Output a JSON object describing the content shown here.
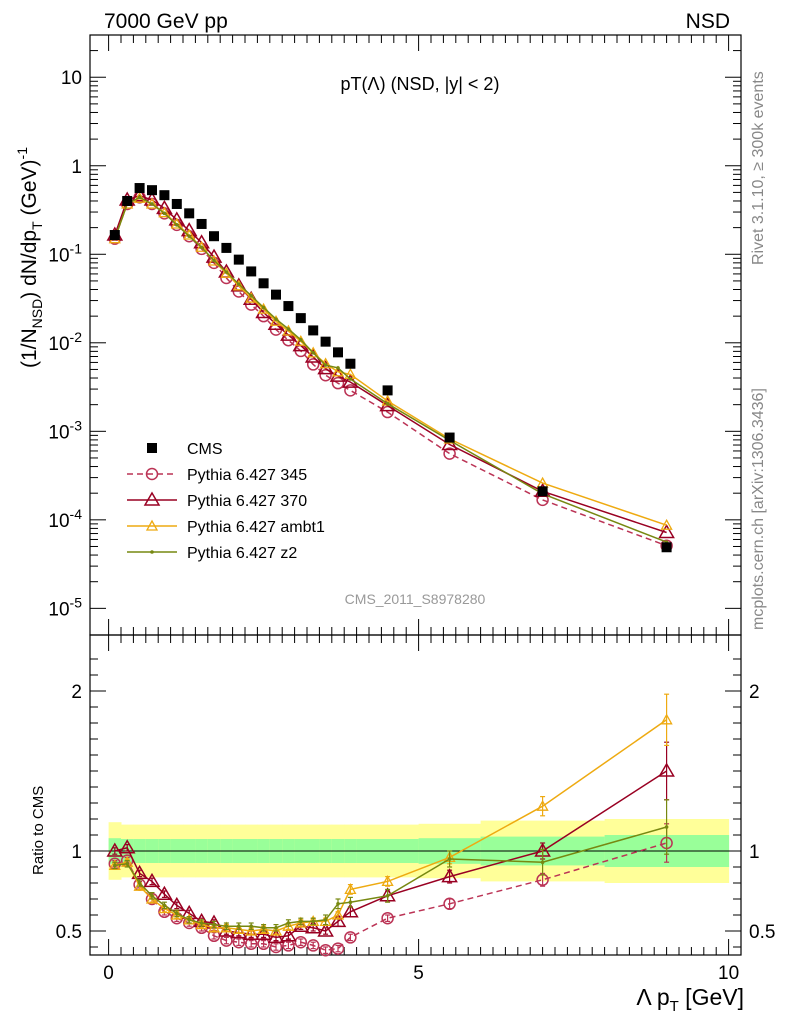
{
  "header": {
    "left": "7000 GeV pp",
    "right": "NSD"
  },
  "side": {
    "rivet": "Rivet 3.1.10, ≥ 300k events",
    "site": "mcplots.cern.ch [arXiv:1306.3436]"
  },
  "colors": {
    "cms": "#000000",
    "p345": "#bb3355",
    "p370": "#990022",
    "ambt1": "#eeaa11",
    "z2": "#778811",
    "band_inner": "#99ff99",
    "band_outer": "#ffff99"
  },
  "chart_data": [
    {
      "type": "line",
      "title": "pT(Λ) (NSD, |y| < 2)",
      "ylabel": "(1/N_NSD) dN/dp_T (GeV)^-1",
      "yscale": "log",
      "xlim": [
        -0.3,
        10.2
      ],
      "ylim": [
        5e-06,
        30
      ],
      "yticks": [
        {
          "v": 10,
          "label": "10"
        },
        {
          "v": 1,
          "label": "1"
        },
        {
          "v": 0.1,
          "label": "10^-1"
        },
        {
          "v": 0.01,
          "label": "10^-2"
        },
        {
          "v": 0.001,
          "label": "10^-3"
        },
        {
          "v": 0.0001,
          "label": "10^-4"
        },
        {
          "v": 1e-05,
          "label": "10^-5"
        }
      ],
      "watermark": "CMS_2011_S8978280",
      "x": [
        0.1,
        0.3,
        0.5,
        0.7,
        0.9,
        1.1,
        1.3,
        1.5,
        1.7,
        1.9,
        2.1,
        2.3,
        2.5,
        2.7,
        2.9,
        3.1,
        3.3,
        3.5,
        3.7,
        3.9,
        4.5,
        5.5,
        7.0,
        9.0
      ],
      "series": [
        {
          "name": "CMS",
          "key": "cms",
          "values": [
            0.165,
            0.4,
            0.56,
            0.53,
            0.465,
            0.37,
            0.29,
            0.22,
            0.16,
            0.118,
            0.087,
            0.064,
            0.047,
            0.035,
            0.026,
            0.019,
            0.0138,
            0.0103,
            0.0078,
            0.0058,
            0.0029,
            0.00085,
            0.00021,
            4.9e-05
          ]
        },
        {
          "name": "Pythia 6.427 345",
          "key": "p345",
          "values": [
            0.15,
            0.37,
            0.44,
            0.37,
            0.29,
            0.215,
            0.16,
            0.115,
            0.08,
            0.054,
            0.038,
            0.027,
            0.02,
            0.0141,
            0.0107,
            0.0081,
            0.0057,
            0.0043,
            0.0035,
            0.0029,
            0.00165,
            0.00056,
            0.000168,
            5.1e-05
          ]
        },
        {
          "name": "Pythia 6.427 370",
          "key": "p370",
          "values": [
            0.165,
            0.41,
            0.46,
            0.41,
            0.33,
            0.245,
            0.185,
            0.135,
            0.093,
            0.063,
            0.044,
            0.031,
            0.022,
            0.0162,
            0.0122,
            0.0093,
            0.0069,
            0.0051,
            0.0042,
            0.0036,
            0.00195,
            0.00071,
            0.00021,
            7.2e-05
          ]
        },
        {
          "name": "Pythia 6.427 ambt1",
          "key": "ambt1",
          "values": [
            0.15,
            0.37,
            0.43,
            0.37,
            0.295,
            0.22,
            0.165,
            0.12,
            0.084,
            0.061,
            0.044,
            0.032,
            0.024,
            0.0175,
            0.0136,
            0.0104,
            0.0077,
            0.0058,
            0.0047,
            0.0044,
            0.0022,
            0.00082,
            0.00026,
            8.7e-05
          ]
        },
        {
          "name": "Pythia 6.427 z2",
          "key": "z2",
          "values": [
            0.15,
            0.37,
            0.44,
            0.37,
            0.29,
            0.215,
            0.16,
            0.12,
            0.085,
            0.063,
            0.046,
            0.034,
            0.025,
            0.0185,
            0.0143,
            0.0108,
            0.0077,
            0.0056,
            0.0052,
            0.0039,
            0.00205,
            0.00079,
            0.000197,
            5.6e-05
          ]
        }
      ],
      "legend": [
        "CMS",
        "Pythia 6.427 345",
        "Pythia 6.427 370",
        "Pythia 6.427 ambt1",
        "Pythia 6.427 z2"
      ],
      "legend_position": "lower-left"
    },
    {
      "type": "line",
      "ylabel": "Ratio to CMS",
      "xlabel": "Λ p_T [GeV]",
      "xlim": [
        -0.3,
        10.2
      ],
      "ylim": [
        0.35,
        2.35
      ],
      "xticks": [
        0,
        5,
        10
      ],
      "yticks": [
        0.5,
        1,
        2
      ],
      "reference": 1,
      "band_edges": [
        0,
        0.2,
        0.4,
        0.6,
        0.8,
        1.0,
        1.2,
        1.4,
        1.6,
        1.8,
        2.0,
        2.2,
        2.4,
        2.6,
        2.8,
        3.0,
        3.2,
        3.4,
        3.6,
        3.8,
        4.0,
        5.0,
        6.0,
        8.0,
        10.0
      ],
      "band_inner_half": [
        0.08,
        0.075,
        0.075,
        0.075,
        0.075,
        0.075,
        0.075,
        0.075,
        0.075,
        0.075,
        0.075,
        0.075,
        0.075,
        0.075,
        0.075,
        0.075,
        0.075,
        0.075,
        0.075,
        0.075,
        0.075,
        0.08,
        0.09,
        0.1
      ],
      "band_outer_half": [
        0.18,
        0.165,
        0.165,
        0.165,
        0.165,
        0.165,
        0.165,
        0.165,
        0.165,
        0.165,
        0.165,
        0.165,
        0.165,
        0.165,
        0.165,
        0.165,
        0.165,
        0.165,
        0.165,
        0.165,
        0.165,
        0.17,
        0.19,
        0.2
      ],
      "x": [
        0.1,
        0.3,
        0.5,
        0.7,
        0.9,
        1.1,
        1.3,
        1.5,
        1.7,
        1.9,
        2.1,
        2.3,
        2.5,
        2.7,
        2.9,
        3.1,
        3.3,
        3.5,
        3.7,
        3.9,
        4.5,
        5.5,
        7.0,
        9.0
      ],
      "series": [
        {
          "name": "Pythia 6.427 345",
          "key": "p345",
          "values": [
            0.92,
            0.94,
            0.79,
            0.7,
            0.62,
            0.58,
            0.55,
            0.52,
            0.47,
            0.44,
            0.43,
            0.42,
            0.42,
            0.4,
            0.41,
            0.43,
            0.41,
            0.38,
            0.39,
            0.46,
            0.58,
            0.67,
            0.82,
            1.05
          ],
          "err": [
            0.02,
            0.02,
            0.02,
            0.02,
            0.02,
            0.02,
            0.02,
            0.02,
            0.02,
            0.02,
            0.02,
            0.02,
            0.02,
            0.02,
            0.02,
            0.02,
            0.02,
            0.02,
            0.02,
            0.02,
            0.02,
            0.03,
            0.04,
            0.12
          ]
        },
        {
          "name": "Pythia 6.427 370",
          "key": "p370",
          "values": [
            1.0,
            1.02,
            0.86,
            0.81,
            0.73,
            0.66,
            0.61,
            0.56,
            0.55,
            0.5,
            0.49,
            0.48,
            0.48,
            0.46,
            0.47,
            0.53,
            0.52,
            0.5,
            0.56,
            0.62,
            0.72,
            0.84,
            1.0,
            1.5
          ],
          "err": [
            0.02,
            0.02,
            0.02,
            0.02,
            0.02,
            0.02,
            0.02,
            0.02,
            0.02,
            0.02,
            0.02,
            0.02,
            0.02,
            0.02,
            0.02,
            0.02,
            0.02,
            0.02,
            0.03,
            0.03,
            0.03,
            0.04,
            0.05,
            0.18
          ]
        },
        {
          "name": "Pythia 6.427 ambt1",
          "key": "ambt1",
          "values": [
            0.91,
            0.93,
            0.78,
            0.7,
            0.64,
            0.6,
            0.57,
            0.54,
            0.52,
            0.52,
            0.51,
            0.5,
            0.51,
            0.5,
            0.53,
            0.55,
            0.56,
            0.56,
            0.6,
            0.76,
            0.81,
            0.96,
            1.28,
            1.82
          ],
          "err": [
            0.02,
            0.02,
            0.02,
            0.02,
            0.02,
            0.02,
            0.02,
            0.02,
            0.02,
            0.02,
            0.02,
            0.02,
            0.02,
            0.02,
            0.02,
            0.02,
            0.02,
            0.02,
            0.02,
            0.03,
            0.03,
            0.04,
            0.06,
            0.16
          ]
        },
        {
          "name": "Pythia 6.427 z2",
          "key": "z2",
          "values": [
            0.91,
            0.92,
            0.8,
            0.72,
            0.66,
            0.61,
            0.57,
            0.55,
            0.54,
            0.53,
            0.53,
            0.53,
            0.52,
            0.52,
            0.55,
            0.56,
            0.56,
            0.57,
            0.67,
            0.68,
            0.72,
            0.95,
            0.93,
            1.15
          ],
          "err": [
            0.02,
            0.02,
            0.02,
            0.02,
            0.02,
            0.02,
            0.02,
            0.02,
            0.02,
            0.02,
            0.02,
            0.02,
            0.02,
            0.02,
            0.02,
            0.02,
            0.02,
            0.03,
            0.03,
            0.03,
            0.04,
            0.05,
            0.08,
            0.17
          ]
        }
      ]
    }
  ]
}
